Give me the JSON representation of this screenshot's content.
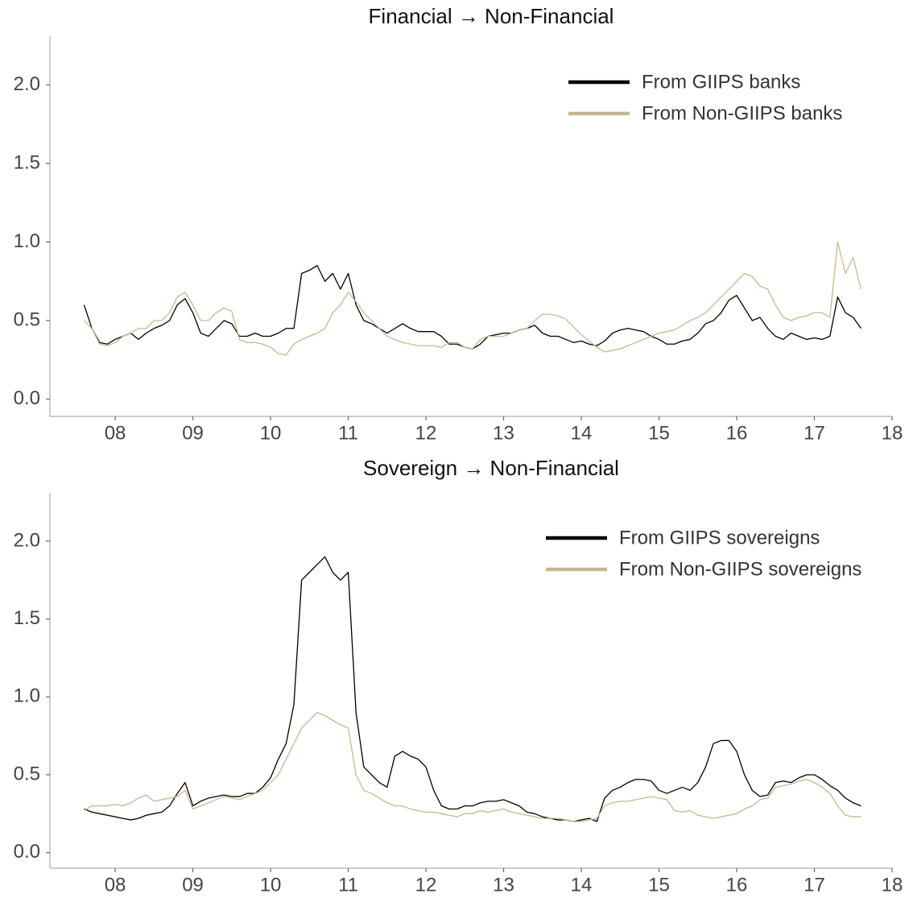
{
  "chart_data": [
    {
      "type": "line",
      "title": "Financial → Non-Financial",
      "x": [
        7.6,
        7.7,
        7.8,
        7.9,
        8.0,
        8.1,
        8.2,
        8.3,
        8.4,
        8.5,
        8.6,
        8.7,
        8.8,
        8.9,
        9.0,
        9.1,
        9.2,
        9.3,
        9.4,
        9.5,
        9.6,
        9.7,
        9.8,
        9.9,
        10.0,
        10.1,
        10.2,
        10.3,
        10.4,
        10.5,
        10.6,
        10.7,
        10.8,
        10.9,
        11.0,
        11.1,
        11.2,
        11.3,
        11.4,
        11.5,
        11.6,
        11.7,
        11.8,
        11.9,
        12.0,
        12.1,
        12.2,
        12.3,
        12.4,
        12.5,
        12.6,
        12.7,
        12.8,
        12.9,
        13.0,
        13.1,
        13.2,
        13.3,
        13.4,
        13.5,
        13.6,
        13.7,
        13.8,
        13.9,
        14.0,
        14.1,
        14.2,
        14.3,
        14.4,
        14.5,
        14.6,
        14.7,
        14.8,
        14.9,
        15.0,
        15.1,
        15.2,
        15.3,
        15.4,
        15.5,
        15.6,
        15.7,
        15.8,
        15.9,
        16.0,
        16.1,
        16.2,
        16.3,
        16.4,
        16.5,
        16.6,
        16.7,
        16.8,
        16.9,
        17.0,
        17.1,
        17.2,
        17.3,
        17.4,
        17.5,
        17.6
      ],
      "series": [
        {
          "name": "From GIIPS banks",
          "color": "#000000",
          "values": [
            0.6,
            0.45,
            0.36,
            0.35,
            0.38,
            0.4,
            0.42,
            0.38,
            0.42,
            0.45,
            0.47,
            0.5,
            0.6,
            0.64,
            0.55,
            0.42,
            0.4,
            0.45,
            0.5,
            0.48,
            0.4,
            0.4,
            0.42,
            0.4,
            0.4,
            0.42,
            0.45,
            0.45,
            0.8,
            0.82,
            0.85,
            0.75,
            0.8,
            0.7,
            0.8,
            0.6,
            0.5,
            0.48,
            0.45,
            0.42,
            0.45,
            0.48,
            0.45,
            0.43,
            0.43,
            0.43,
            0.4,
            0.35,
            0.35,
            0.33,
            0.32,
            0.35,
            0.4,
            0.41,
            0.42,
            0.42,
            0.44,
            0.45,
            0.47,
            0.42,
            0.4,
            0.4,
            0.38,
            0.36,
            0.37,
            0.35,
            0.34,
            0.37,
            0.42,
            0.44,
            0.45,
            0.44,
            0.43,
            0.4,
            0.38,
            0.35,
            0.35,
            0.37,
            0.38,
            0.42,
            0.48,
            0.5,
            0.55,
            0.63,
            0.66,
            0.58,
            0.5,
            0.52,
            0.45,
            0.4,
            0.38,
            0.42,
            0.4,
            0.38,
            0.39,
            0.38,
            0.4,
            0.65,
            0.55,
            0.52,
            0.45
          ]
        },
        {
          "name": "From Non-GIIPS banks",
          "color": "#c9b690",
          "values": [
            0.5,
            0.45,
            0.35,
            0.34,
            0.36,
            0.4,
            0.42,
            0.45,
            0.45,
            0.5,
            0.5,
            0.55,
            0.65,
            0.68,
            0.6,
            0.5,
            0.5,
            0.55,
            0.58,
            0.56,
            0.38,
            0.36,
            0.36,
            0.35,
            0.33,
            0.29,
            0.28,
            0.35,
            0.38,
            0.4,
            0.42,
            0.45,
            0.55,
            0.6,
            0.68,
            0.62,
            0.55,
            0.5,
            0.45,
            0.4,
            0.38,
            0.36,
            0.35,
            0.34,
            0.34,
            0.34,
            0.33,
            0.36,
            0.36,
            0.33,
            0.32,
            0.38,
            0.4,
            0.4,
            0.4,
            0.42,
            0.44,
            0.45,
            0.5,
            0.54,
            0.54,
            0.53,
            0.51,
            0.46,
            0.41,
            0.37,
            0.33,
            0.3,
            0.31,
            0.32,
            0.34,
            0.36,
            0.38,
            0.4,
            0.42,
            0.43,
            0.44,
            0.47,
            0.5,
            0.52,
            0.55,
            0.6,
            0.65,
            0.7,
            0.75,
            0.8,
            0.78,
            0.72,
            0.7,
            0.6,
            0.52,
            0.5,
            0.52,
            0.53,
            0.55,
            0.55,
            0.52,
            1.0,
            0.8,
            0.9,
            0.7
          ]
        }
      ],
      "xlim": [
        7.16,
        18.0
      ],
      "ylim": [
        -0.11,
        2.31
      ],
      "xticks": [
        {
          "value": 8,
          "label": "08"
        },
        {
          "value": 9,
          "label": "09"
        },
        10,
        11,
        12,
        13,
        14,
        15,
        16,
        17,
        18
      ],
      "yticks": [
        {
          "value": 0,
          "label": "0.0"
        },
        0.5,
        {
          "value": 1,
          "label": "1.0"
        },
        1.5,
        {
          "value": 2,
          "label": "2.0"
        }
      ],
      "legend": "upper right"
    },
    {
      "type": "line",
      "title": "Sovereign → Non-Financial",
      "x": [
        7.6,
        7.7,
        7.8,
        7.9,
        8.0,
        8.1,
        8.2,
        8.3,
        8.4,
        8.5,
        8.6,
        8.7,
        8.8,
        8.9,
        9.0,
        9.1,
        9.2,
        9.3,
        9.4,
        9.5,
        9.6,
        9.7,
        9.8,
        9.9,
        10.0,
        10.1,
        10.2,
        10.3,
        10.4,
        10.5,
        10.6,
        10.7,
        10.8,
        10.9,
        11.0,
        11.1,
        11.2,
        11.3,
        11.4,
        11.5,
        11.6,
        11.7,
        11.8,
        11.9,
        12.0,
        12.1,
        12.2,
        12.3,
        12.4,
        12.5,
        12.6,
        12.7,
        12.8,
        12.9,
        13.0,
        13.1,
        13.2,
        13.3,
        13.4,
        13.5,
        13.6,
        13.7,
        13.8,
        13.9,
        14.0,
        14.1,
        14.2,
        14.3,
        14.4,
        14.5,
        14.6,
        14.7,
        14.8,
        14.9,
        15.0,
        15.1,
        15.2,
        15.3,
        15.4,
        15.5,
        15.6,
        15.7,
        15.8,
        15.9,
        16.0,
        16.1,
        16.2,
        16.3,
        16.4,
        16.5,
        16.6,
        16.7,
        16.8,
        16.9,
        17.0,
        17.1,
        17.2,
        17.3,
        17.4,
        17.5,
        17.6
      ],
      "series": [
        {
          "name": "From GIIPS sovereigns",
          "color": "#000000",
          "values": [
            0.28,
            0.26,
            0.25,
            0.24,
            0.23,
            0.22,
            0.21,
            0.22,
            0.24,
            0.25,
            0.26,
            0.3,
            0.38,
            0.45,
            0.3,
            0.33,
            0.35,
            0.36,
            0.37,
            0.36,
            0.36,
            0.38,
            0.38,
            0.42,
            0.48,
            0.6,
            0.7,
            0.95,
            1.75,
            1.8,
            1.85,
            1.9,
            1.8,
            1.75,
            1.8,
            0.9,
            0.55,
            0.5,
            0.45,
            0.42,
            0.62,
            0.65,
            0.62,
            0.6,
            0.55,
            0.4,
            0.3,
            0.28,
            0.28,
            0.3,
            0.3,
            0.32,
            0.33,
            0.33,
            0.34,
            0.32,
            0.3,
            0.26,
            0.25,
            0.23,
            0.22,
            0.21,
            0.21,
            0.2,
            0.21,
            0.22,
            0.2,
            0.35,
            0.4,
            0.42,
            0.45,
            0.47,
            0.47,
            0.46,
            0.4,
            0.38,
            0.4,
            0.42,
            0.4,
            0.45,
            0.55,
            0.7,
            0.72,
            0.72,
            0.65,
            0.5,
            0.4,
            0.36,
            0.37,
            0.45,
            0.46,
            0.45,
            0.48,
            0.5,
            0.5,
            0.47,
            0.43,
            0.4,
            0.35,
            0.32,
            0.3
          ]
        },
        {
          "name": "From Non-GIIPS sovereigns",
          "color": "#c9b690",
          "values": [
            0.27,
            0.3,
            0.3,
            0.3,
            0.31,
            0.3,
            0.32,
            0.35,
            0.37,
            0.33,
            0.34,
            0.35,
            0.36,
            0.4,
            0.28,
            0.3,
            0.32,
            0.34,
            0.36,
            0.35,
            0.34,
            0.36,
            0.38,
            0.4,
            0.45,
            0.5,
            0.6,
            0.7,
            0.8,
            0.85,
            0.9,
            0.88,
            0.85,
            0.82,
            0.8,
            0.5,
            0.4,
            0.38,
            0.35,
            0.32,
            0.3,
            0.3,
            0.28,
            0.27,
            0.26,
            0.26,
            0.25,
            0.24,
            0.23,
            0.25,
            0.25,
            0.27,
            0.26,
            0.27,
            0.28,
            0.26,
            0.25,
            0.24,
            0.23,
            0.22,
            0.22,
            0.22,
            0.21,
            0.2,
            0.2,
            0.21,
            0.22,
            0.3,
            0.32,
            0.33,
            0.33,
            0.34,
            0.35,
            0.36,
            0.35,
            0.34,
            0.27,
            0.26,
            0.27,
            0.24,
            0.23,
            0.22,
            0.23,
            0.24,
            0.25,
            0.28,
            0.3,
            0.34,
            0.35,
            0.42,
            0.43,
            0.44,
            0.46,
            0.47,
            0.45,
            0.42,
            0.38,
            0.3,
            0.24,
            0.23,
            0.23
          ]
        }
      ],
      "xlim": [
        7.16,
        18.0
      ],
      "ylim": [
        -0.1,
        2.31
      ],
      "xticks": [
        {
          "value": 8,
          "label": "08"
        },
        {
          "value": 9,
          "label": "09"
        },
        10,
        11,
        12,
        13,
        14,
        15,
        16,
        17,
        18
      ],
      "yticks": [
        {
          "value": 0,
          "label": "0.0"
        },
        0.5,
        {
          "value": 1,
          "label": "1.0"
        },
        1.5,
        {
          "value": 2,
          "label": "2.0"
        }
      ],
      "legend": "upper right"
    }
  ]
}
